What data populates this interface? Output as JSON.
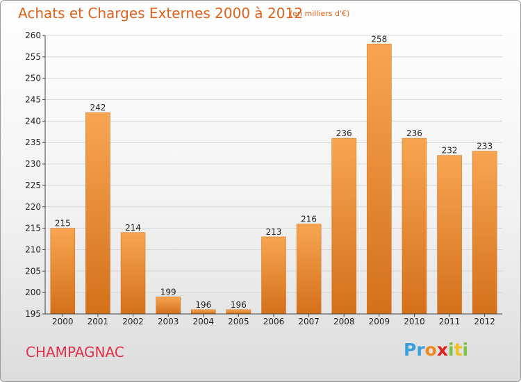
{
  "title": "Achats et Charges Externes 2000 à 2012",
  "subtitle": "(en milliers d'€)",
  "commune": "CHAMPAGNAC",
  "logo": {
    "letters": [
      "P",
      "r",
      "o",
      "x",
      "i",
      "t",
      "i"
    ],
    "colors": [
      "#3aa0dc",
      "#3aa0dc",
      "#f08a1c",
      "#e02020",
      "#7cc242",
      "#f0c020",
      "#7cc242"
    ]
  },
  "colors": {
    "bar_light": "#f7a552",
    "bar_dark": "#d4701a",
    "grid": "#d6d6d6",
    "title": "#e0601a",
    "commune": "#e0304a"
  },
  "chart_data": {
    "type": "bar",
    "title": "Achats et Charges Externes 2000 à 2012",
    "subtitle": "(en milliers d'€)",
    "categories": [
      "2000",
      "2001",
      "2002",
      "2003",
      "2004",
      "2005",
      "2006",
      "2007",
      "2008",
      "2009",
      "2010",
      "2011",
      "2012"
    ],
    "values": [
      215,
      242,
      214,
      199,
      196,
      196,
      213,
      216,
      236,
      258,
      236,
      232,
      233
    ],
    "ylim": [
      195,
      260
    ],
    "yticks": [
      195,
      200,
      205,
      210,
      215,
      220,
      225,
      230,
      235,
      240,
      245,
      250,
      255,
      260
    ],
    "grid": true,
    "xlabel": "",
    "ylabel": ""
  }
}
